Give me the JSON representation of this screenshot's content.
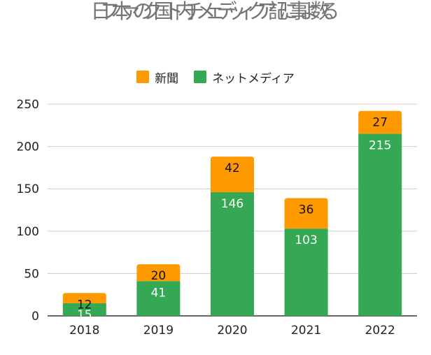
{
  "chart_data": {
    "type": "bar",
    "stacked": true,
    "title_lines": [
      "日本の国内メディアによる",
      "ファクトチェック記事数"
    ],
    "categories": [
      "2018",
      "2019",
      "2020",
      "2021",
      "2022"
    ],
    "series": [
      {
        "name": "ネットメディア",
        "values": [
          15,
          41,
          146,
          103,
          215
        ],
        "color": "#34a853",
        "label_color": "#ffffff"
      },
      {
        "name": "新聞",
        "values": [
          12,
          20,
          42,
          36,
          27
        ],
        "color": "#ff9900",
        "label_color": "#111111"
      }
    ],
    "legend_order": [
      "新聞",
      "ネットメディア"
    ],
    "legend_colors": [
      "#ff9900",
      "#34a853"
    ],
    "ylim": [
      0,
      250
    ],
    "yticks": [
      "0",
      "50",
      "100",
      "150",
      "200",
      "250"
    ],
    "grid": true,
    "legend_position": "top-center"
  }
}
